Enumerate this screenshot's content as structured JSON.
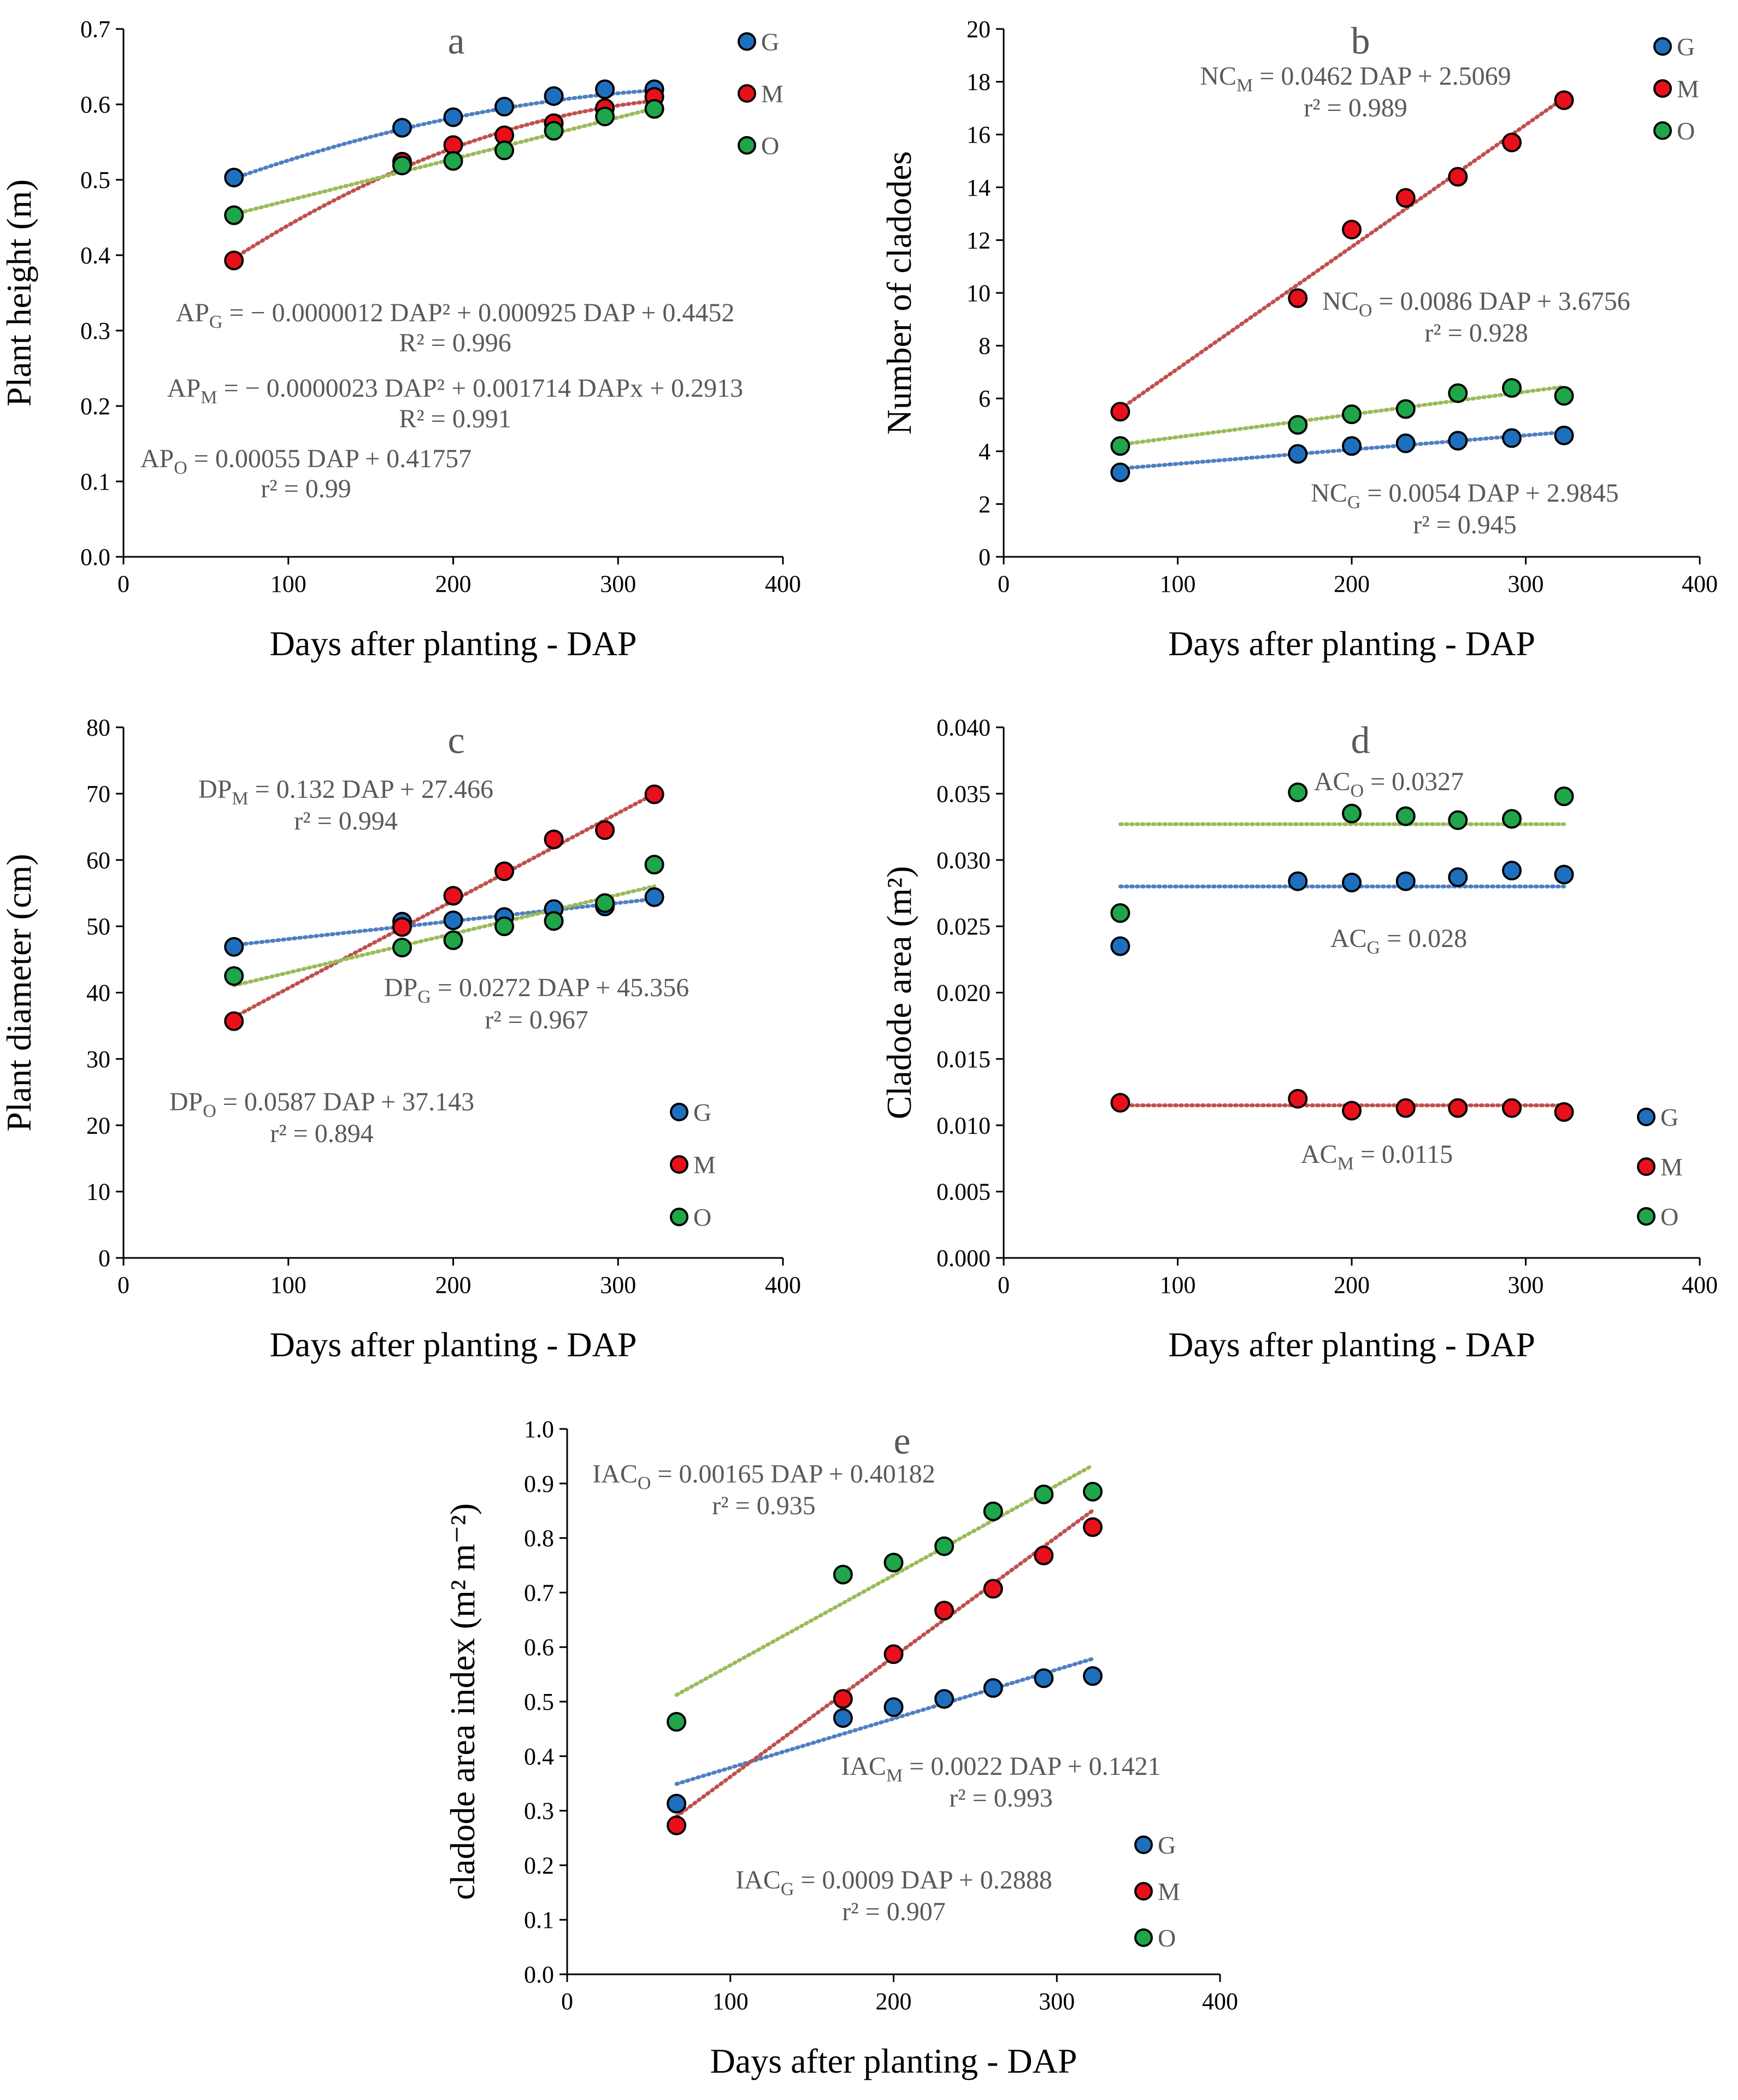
{
  "colors": {
    "G": "#1f6fbf",
    "M": "#e8101a",
    "O": "#1fa54a",
    "trend_G": "#4f7fc2",
    "trend_M": "#c0504d",
    "trend_O": "#9bbb59",
    "equation_text": "#595959",
    "marker_edge": "#000000"
  },
  "chart_data": [
    {
      "id": "a",
      "type": "scatter",
      "title": "a",
      "xlabel": "Days after planting - DAP",
      "ylabel": "Plant height (m)",
      "xlim": [
        0,
        400
      ],
      "xticks": [
        0,
        100,
        200,
        300,
        400
      ],
      "xtick_labels": [
        "0",
        "100",
        "200",
        "300",
        "400"
      ],
      "ylim": [
        0,
        0.7
      ],
      "yticks": [
        0,
        0.1,
        0.2,
        0.3,
        0.4,
        0.5,
        0.6,
        0.7
      ],
      "ytick_labels": [
        "0.0",
        "0.1",
        "0.2",
        "0.3",
        "0.4",
        "0.5",
        "0.6",
        "0.7"
      ],
      "legend": {
        "position": "top-right",
        "entries": [
          "G",
          "M",
          "O"
        ]
      },
      "series": [
        {
          "name": "G",
          "x": [
            67,
            169,
            200,
            231,
            261,
            292,
            322
          ],
          "y": [
            0.503,
            0.569,
            0.583,
            0.597,
            0.611,
            0.62,
            0.62
          ],
          "trend": {
            "kind": "poly2",
            "coef": [
              -1.2e-06,
              0.000925,
              0.4452
            ],
            "xrange": [
              67,
              322
            ]
          }
        },
        {
          "name": "M",
          "x": [
            67,
            169,
            200,
            231,
            261,
            292,
            322
          ],
          "y": [
            0.393,
            0.524,
            0.546,
            0.559,
            0.575,
            0.595,
            0.61
          ],
          "trend": {
            "kind": "poly2",
            "coef": [
              -2.3e-06,
              0.001714,
              0.2913
            ],
            "xrange": [
              67,
              322
            ]
          }
        },
        {
          "name": "O",
          "x": [
            67,
            169,
            200,
            231,
            261,
            292,
            322
          ],
          "y": [
            0.453,
            0.519,
            0.525,
            0.539,
            0.565,
            0.584,
            0.594
          ],
          "trend": {
            "kind": "linear",
            "coef": [
              0.00055,
              0.41757
            ],
            "xrange": [
              67,
              322
            ]
          }
        }
      ],
      "annotations": [
        {
          "main": "AP",
          "sub": "G",
          "rest": " = − 0.0000012 DAP² + 0.000925 DAP + 0.4452",
          "r2": "R² = 0.996"
        },
        {
          "main": "AP",
          "sub": "M",
          "rest": " = − 0.0000023 DAP² + 0.001714 DAPx + 0.2913",
          "r2": "R² = 0.991"
        },
        {
          "main": "AP",
          "sub": "O",
          "rest": " = 0.00055 DAP + 0.41757",
          "r2": "r² = 0.99"
        }
      ]
    },
    {
      "id": "b",
      "type": "scatter",
      "title": "b",
      "xlabel": "Days after planting - DAP",
      "ylabel": "Number of cladodes",
      "xlim": [
        0,
        400
      ],
      "xticks": [
        0,
        100,
        200,
        300,
        400
      ],
      "xtick_labels": [
        "0",
        "100",
        "200",
        "300",
        "400"
      ],
      "ylim": [
        0,
        20
      ],
      "yticks": [
        0,
        2,
        4,
        6,
        8,
        10,
        12,
        14,
        16,
        18,
        20
      ],
      "ytick_labels": [
        "0",
        "2",
        "4",
        "6",
        "8",
        "10",
        "12",
        "14",
        "16",
        "18",
        "20"
      ],
      "legend": {
        "position": "top-right",
        "entries": [
          "G",
          "M",
          "O"
        ]
      },
      "series": [
        {
          "name": "G",
          "x": [
            67,
            169,
            200,
            231,
            261,
            292,
            322
          ],
          "y": [
            3.2,
            3.9,
            4.2,
            4.3,
            4.4,
            4.5,
            4.6
          ],
          "trend": {
            "kind": "linear",
            "coef": [
              0.0054,
              2.9845
            ],
            "xrange": [
              67,
              322
            ]
          }
        },
        {
          "name": "M",
          "x": [
            67,
            169,
            200,
            231,
            261,
            292,
            322
          ],
          "y": [
            5.5,
            9.8,
            12.4,
            13.6,
            14.4,
            15.7,
            17.3
          ],
          "trend": {
            "kind": "linear",
            "coef": [
              0.0462,
              2.5069
            ],
            "xrange": [
              67,
              322
            ]
          }
        },
        {
          "name": "O",
          "x": [
            67,
            169,
            200,
            231,
            261,
            292,
            322
          ],
          "y": [
            4.2,
            5.0,
            5.4,
            5.6,
            6.2,
            6.4,
            6.1
          ],
          "trend": {
            "kind": "linear",
            "coef": [
              0.0086,
              3.6756
            ],
            "xrange": [
              67,
              322
            ]
          }
        }
      ],
      "annotations": [
        {
          "main": "NC",
          "sub": "M",
          "rest": " = 0.0462 DAP + 2.5069",
          "r2": "r² = 0.989"
        },
        {
          "main": "NC",
          "sub": "O",
          "rest": " = 0.0086 DAP + 3.6756",
          "r2": "r² = 0.928"
        },
        {
          "main": "NC",
          "sub": "G",
          "rest": " = 0.0054 DAP + 2.9845",
          "r2": "r² = 0.945"
        }
      ]
    },
    {
      "id": "c",
      "type": "scatter",
      "title": "c",
      "xlabel": "Days after planting - DAP",
      "ylabel": "Plant diameter (cm)",
      "xlim": [
        0,
        400
      ],
      "xticks": [
        0,
        100,
        200,
        300,
        400
      ],
      "xtick_labels": [
        "0",
        "100",
        "200",
        "300",
        "400"
      ],
      "ylim": [
        0,
        80
      ],
      "yticks": [
        0,
        10,
        20,
        30,
        40,
        50,
        60,
        70,
        80
      ],
      "ytick_labels": [
        "0",
        "10",
        "20",
        "30",
        "40",
        "50",
        "60",
        "70",
        "80"
      ],
      "legend": {
        "position": "bottom-right",
        "entries": [
          "G",
          "M",
          "O"
        ]
      },
      "series": [
        {
          "name": "G",
          "x": [
            67,
            169,
            200,
            231,
            261,
            292,
            322
          ],
          "y": [
            46.9,
            50.7,
            50.9,
            51.4,
            52.6,
            53.0,
            54.4
          ],
          "trend": {
            "kind": "linear",
            "coef": [
              0.0272,
              45.356
            ],
            "xrange": [
              67,
              322
            ]
          }
        },
        {
          "name": "M",
          "x": [
            67,
            169,
            200,
            231,
            261,
            292,
            322
          ],
          "y": [
            35.7,
            49.9,
            54.6,
            58.3,
            63.1,
            64.5,
            69.9
          ],
          "trend": {
            "kind": "linear",
            "coef": [
              0.132,
              27.466
            ],
            "xrange": [
              67,
              322
            ]
          }
        },
        {
          "name": "O",
          "x": [
            67,
            169,
            200,
            231,
            261,
            292,
            322
          ],
          "y": [
            42.5,
            46.8,
            47.9,
            50.0,
            50.8,
            53.5,
            59.3
          ],
          "trend": {
            "kind": "linear",
            "coef": [
              0.0587,
              37.143
            ],
            "xrange": [
              67,
              322
            ]
          }
        }
      ],
      "annotations": [
        {
          "main": "DP",
          "sub": "M",
          "rest": " = 0.132 DAP + 27.466",
          "r2": "r² = 0.994"
        },
        {
          "main": "DP",
          "sub": "G",
          "rest": " = 0.0272 DAP + 45.356",
          "r2": "r² = 0.967"
        },
        {
          "main": "DP",
          "sub": "O",
          "rest": " = 0.0587 DAP + 37.143",
          "r2": "r² = 0.894"
        }
      ]
    },
    {
      "id": "d",
      "type": "scatter",
      "title": "d",
      "xlabel": "Days after planting - DAP",
      "ylabel": "Cladode area (m²)",
      "xlim": [
        0,
        400
      ],
      "xticks": [
        0,
        100,
        200,
        300,
        400
      ],
      "xtick_labels": [
        "0",
        "100",
        "200",
        "300",
        "400"
      ],
      "ylim": [
        0,
        0.04
      ],
      "yticks": [
        0,
        0.005,
        0.01,
        0.015,
        0.02,
        0.025,
        0.03,
        0.035,
        0.04
      ],
      "ytick_labels": [
        "0.000",
        "0.005",
        "0.010",
        "0.015",
        "0.020",
        "0.025",
        "0.030",
        "0.035",
        "0.040"
      ],
      "legend": {
        "position": "bottom-right",
        "entries": [
          "G",
          "M",
          "O"
        ]
      },
      "series": [
        {
          "name": "G",
          "x": [
            67,
            169,
            200,
            231,
            261,
            292,
            322
          ],
          "y": [
            0.0235,
            0.0284,
            0.0283,
            0.0284,
            0.0287,
            0.0292,
            0.0289
          ],
          "trend": {
            "kind": "constant",
            "coef": [
              0.028
            ],
            "xrange": [
              67,
              322
            ]
          }
        },
        {
          "name": "M",
          "x": [
            67,
            169,
            200,
            231,
            261,
            292,
            322
          ],
          "y": [
            0.0117,
            0.012,
            0.0111,
            0.0113,
            0.0113,
            0.0113,
            0.011
          ],
          "trend": {
            "kind": "constant",
            "coef": [
              0.0115
            ],
            "xrange": [
              67,
              322
            ]
          }
        },
        {
          "name": "O",
          "x": [
            67,
            169,
            200,
            231,
            261,
            292,
            322
          ],
          "y": [
            0.026,
            0.0351,
            0.0335,
            0.0333,
            0.033,
            0.0331,
            0.0348
          ],
          "trend": {
            "kind": "constant",
            "coef": [
              0.0327
            ],
            "xrange": [
              67,
              322
            ]
          }
        }
      ],
      "annotations": [
        {
          "main": "AC",
          "sub": "O",
          "rest": " = 0.0327",
          "r2": ""
        },
        {
          "main": "AC",
          "sub": "G",
          "rest": " = 0.028",
          "r2": ""
        },
        {
          "main": "AC",
          "sub": "M",
          "rest": " = 0.0115",
          "r2": ""
        }
      ]
    },
    {
      "id": "e",
      "type": "scatter",
      "title": "e",
      "xlabel": "Days after planting - DAP",
      "ylabel": "cladode area index (m² m⁻²)",
      "xlim": [
        0,
        400
      ],
      "xticks": [
        0,
        100,
        200,
        300,
        400
      ],
      "xtick_labels": [
        "0",
        "100",
        "200",
        "300",
        "400"
      ],
      "ylim": [
        0,
        1.0
      ],
      "yticks": [
        0,
        0.1,
        0.2,
        0.3,
        0.4,
        0.5,
        0.6,
        0.7,
        0.8,
        0.9,
        1.0
      ],
      "ytick_labels": [
        "0.0",
        "0.1",
        "0.2",
        "0.3",
        "0.4",
        "0.5",
        "0.6",
        "0.7",
        "0.8",
        "0.9",
        "1.0"
      ],
      "legend": {
        "position": "bottom-right",
        "entries": [
          "G",
          "M",
          "O"
        ]
      },
      "series": [
        {
          "name": "G",
          "x": [
            67,
            169,
            200,
            231,
            261,
            292,
            322
          ],
          "y": [
            0.313,
            0.47,
            0.49,
            0.505,
            0.525,
            0.543,
            0.547
          ],
          "trend": {
            "kind": "linear",
            "coef": [
              0.0009,
              0.2888
            ],
            "xrange": [
              67,
              322
            ]
          }
        },
        {
          "name": "M",
          "x": [
            67,
            169,
            200,
            231,
            261,
            292,
            322
          ],
          "y": [
            0.273,
            0.505,
            0.587,
            0.667,
            0.707,
            0.768,
            0.82
          ],
          "trend": {
            "kind": "linear",
            "coef": [
              0.0022,
              0.1421
            ],
            "xrange": [
              67,
              322
            ]
          }
        },
        {
          "name": "O",
          "x": [
            67,
            169,
            200,
            231,
            261,
            292,
            322
          ],
          "y": [
            0.463,
            0.733,
            0.755,
            0.785,
            0.849,
            0.88,
            0.885
          ],
          "trend": {
            "kind": "linear",
            "coef": [
              0.00165,
              0.40182
            ],
            "xrange": [
              67,
              322
            ]
          }
        }
      ],
      "annotations": [
        {
          "main": "IAC",
          "sub": "O",
          "rest": " = 0.00165 DAP + 0.40182",
          "r2": "r² = 0.935"
        },
        {
          "main": "IAC",
          "sub": "M",
          "rest": " = 0.0022 DAP + 0.1421",
          "r2": "r² = 0.993"
        },
        {
          "main": "IAC",
          "sub": "G",
          "rest": " = 0.0009 DAP + 0.2888",
          "r2": "r² = 0.907"
        }
      ]
    }
  ]
}
